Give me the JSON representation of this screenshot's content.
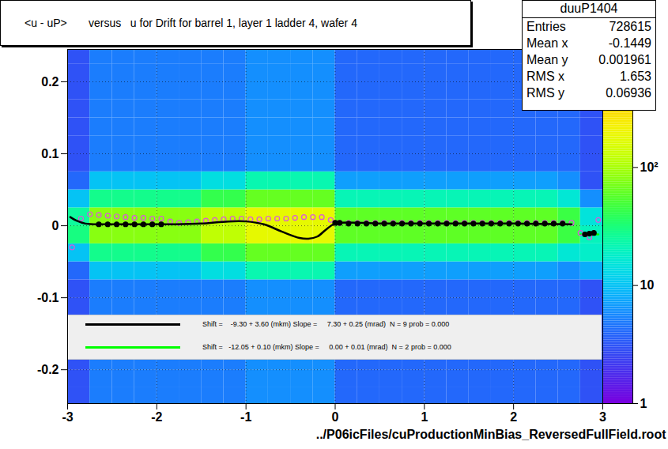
{
  "chart_data": {
    "type": "heatmap",
    "title": "<u - uP>       versus   u for Drift for barrel 1, layer 1 ladder 4, wafer 4",
    "xlabel": "../P06icFiles/cuProductionMinBias_ReversedFullField.root",
    "ylabel": null,
    "xlim": [
      -3,
      3
    ],
    "xticks": [
      -3,
      -2,
      -1,
      0,
      1,
      2,
      3
    ],
    "ylim": [
      -0.247,
      0.245
    ],
    "yticks": [
      -0.2,
      -0.1,
      0,
      0.1,
      0.2
    ],
    "grid": true,
    "heatmap": {
      "x_edges": [
        -3,
        -2.75,
        -2.5,
        -2.25,
        -2,
        -1.75,
        -1.5,
        -1.25,
        -1,
        -0.75,
        -0.5,
        -0.25,
        0,
        0.25,
        0.5,
        0.75,
        1,
        1.25,
        1.5,
        1.75,
        2,
        2.25,
        2.5,
        2.75,
        3
      ],
      "y_edges": [
        -0.25,
        -0.225,
        -0.2,
        -0.175,
        -0.15,
        -0.125,
        -0.1,
        -0.075,
        -0.05,
        -0.025,
        0,
        0.025,
        0.05,
        0.075,
        0.1,
        0.125,
        0.15,
        0.175,
        0.2,
        0.225,
        0.25
      ],
      "counts": [
        [
          3,
          5,
          5,
          5,
          5,
          5,
          5,
          5,
          6,
          6,
          6,
          6,
          4,
          4,
          4,
          4,
          4,
          4,
          4,
          4,
          4,
          4,
          4,
          3
        ],
        [
          3,
          5,
          5,
          5,
          5,
          5,
          5,
          5,
          6,
          6,
          6,
          6,
          4,
          4,
          4,
          4,
          4,
          4,
          4,
          4,
          4,
          4,
          4,
          3
        ],
        [
          3,
          5,
          5,
          5,
          5,
          5,
          5,
          5,
          6,
          6,
          6,
          6,
          4,
          4,
          4,
          4,
          4,
          4,
          4,
          4,
          4,
          4,
          4,
          3
        ],
        [
          3,
          5,
          5,
          5,
          5,
          5,
          5,
          5,
          6,
          6,
          6,
          6,
          4,
          4,
          4,
          4,
          4,
          4,
          4,
          4,
          4,
          4,
          4,
          3
        ],
        [
          3,
          5,
          5,
          5,
          5,
          5,
          5,
          5,
          6,
          6,
          6,
          6,
          4,
          4,
          4,
          4,
          4,
          4,
          4,
          4,
          4,
          4,
          4,
          3
        ],
        [
          3,
          5,
          5,
          5,
          5,
          5,
          5,
          5,
          6,
          6,
          6,
          6,
          4,
          4,
          4,
          4,
          4,
          4,
          4,
          4,
          4,
          4,
          4,
          3
        ],
        [
          3,
          5,
          5,
          5,
          5,
          5,
          5,
          5,
          6,
          6,
          6,
          6,
          4,
          4,
          4,
          4,
          4,
          4,
          4,
          4,
          4,
          4,
          4,
          3
        ],
        [
          4,
          10,
          10,
          10,
          10,
          10,
          14,
          14,
          22,
          22,
          22,
          22,
          7,
          7,
          7,
          7,
          7,
          7,
          7,
          7,
          7,
          7,
          6,
          8
        ],
        [
          10,
          28,
          28,
          28,
          28,
          28,
          42,
          42,
          63,
          63,
          63,
          63,
          21,
          21,
          21,
          21,
          21,
          21,
          21,
          21,
          21,
          21,
          16,
          18
        ],
        [
          30,
          80,
          80,
          80,
          80,
          80,
          120,
          120,
          180,
          180,
          180,
          180,
          60,
          60,
          60,
          60,
          60,
          60,
          60,
          60,
          60,
          60,
          45,
          20
        ],
        [
          25,
          80,
          80,
          80,
          80,
          80,
          120,
          120,
          180,
          180,
          180,
          180,
          60,
          60,
          60,
          60,
          60,
          60,
          60,
          60,
          60,
          60,
          45,
          15
        ],
        [
          10,
          28,
          28,
          28,
          28,
          28,
          42,
          42,
          63,
          63,
          63,
          63,
          21,
          21,
          21,
          21,
          21,
          21,
          21,
          21,
          21,
          21,
          16,
          6
        ],
        [
          4,
          10,
          10,
          10,
          10,
          10,
          14,
          14,
          22,
          22,
          22,
          22,
          7,
          7,
          7,
          7,
          7,
          7,
          7,
          7,
          7,
          7,
          6,
          3
        ],
        [
          3,
          5,
          5,
          5,
          5,
          5,
          5,
          5,
          6,
          6,
          6,
          6,
          4,
          4,
          4,
          4,
          4,
          4,
          4,
          4,
          4,
          4,
          4,
          3
        ],
        [
          3,
          5,
          5,
          5,
          5,
          5,
          5,
          5,
          6,
          6,
          6,
          6,
          4,
          4,
          4,
          4,
          4,
          4,
          4,
          4,
          4,
          4,
          4,
          3
        ],
        [
          3,
          5,
          5,
          5,
          5,
          5,
          5,
          5,
          6,
          6,
          6,
          6,
          4,
          4,
          4,
          4,
          4,
          4,
          4,
          4,
          4,
          4,
          4,
          3
        ],
        [
          3,
          5,
          5,
          5,
          5,
          5,
          5,
          5,
          6,
          6,
          6,
          6,
          4,
          4,
          4,
          4,
          4,
          4,
          4,
          4,
          4,
          4,
          4,
          3
        ],
        [
          3,
          5,
          5,
          5,
          5,
          5,
          5,
          5,
          6,
          6,
          6,
          6,
          4,
          4,
          4,
          4,
          4,
          4,
          4,
          4,
          4,
          4,
          4,
          3
        ],
        [
          3,
          5,
          5,
          5,
          5,
          5,
          5,
          5,
          6,
          6,
          6,
          6,
          4,
          4,
          4,
          4,
          4,
          4,
          4,
          4,
          4,
          4,
          4,
          3
        ],
        [
          3,
          5,
          5,
          5,
          5,
          5,
          5,
          5,
          6,
          6,
          6,
          6,
          4,
          4,
          4,
          4,
          4,
          4,
          4,
          4,
          4,
          4,
          4,
          3
        ]
      ]
    },
    "colorbar": {
      "log": true,
      "range": [
        1,
        1000
      ],
      "ticks": [
        1,
        10,
        {
          "value": 100,
          "label": "10²"
        }
      ]
    },
    "stats": {
      "title": "duuP1404",
      "rows": [
        {
          "label": "Entries",
          "value": 728615
        },
        {
          "label": "Mean x",
          "value": -0.1449
        },
        {
          "label": "Mean y",
          "value": 0.001961
        },
        {
          "label": "RMS x",
          "value": 1.653
        },
        {
          "label": "RMS y",
          "value": 0.06936
        }
      ]
    },
    "series": [
      {
        "name": "Shift =   -12.05 + 0.10 (mkm) Slope =     0.00 + 0.01 (mrad)  N = 2 prob = 0.000",
        "type": "line",
        "color": "#00ff00",
        "line_style": "solid",
        "x": [
          2.75,
          2.95
        ],
        "values": [
          -0.012,
          -0.012
        ]
      },
      {
        "type": "scatter",
        "color": "#dd55dd",
        "marker": "circle-open",
        "x": [
          -2.95,
          -2.85,
          -2.75,
          -2.65,
          -2.55,
          -2.45,
          -2.35,
          -2.25,
          -2.15,
          -2.05,
          -1.95,
          -1.85,
          -1.75,
          -1.65,
          -1.55,
          -1.45,
          -1.35,
          -1.25,
          -1.15,
          -1.05,
          -0.95,
          -0.85,
          -0.75,
          -0.65,
          -0.55,
          -0.45,
          -0.35,
          -0.25,
          -0.15,
          -0.05,
          0.05,
          0.15,
          0.25,
          0.35,
          0.45,
          0.55,
          0.65,
          0.75,
          0.85,
          0.95,
          1.05,
          1.15,
          1.25,
          1.35,
          1.45,
          1.55,
          1.65,
          1.75,
          1.85,
          1.95,
          2.05,
          2.15,
          2.25,
          2.35,
          2.45,
          2.55,
          2.65,
          2.75,
          2.85,
          2.95
        ],
        "values": [
          -0.03,
          0.01,
          0.016,
          0.015,
          0.014,
          0.013,
          0.012,
          0.011,
          0.011,
          0.01,
          0.01,
          0.006,
          0.004,
          0.005,
          0.006,
          0.007,
          0.008,
          0.009,
          0.01,
          0.01,
          0.009,
          0.009,
          0.01,
          0.01,
          0.01,
          0.011,
          0.012,
          0.012,
          0.012,
          0.008,
          0.004,
          0.004,
          0.004,
          0.004,
          0.004,
          0.004,
          0.004,
          0.004,
          0.004,
          0.004,
          0.004,
          0.004,
          0.004,
          0.004,
          0.004,
          0.004,
          0.004,
          0.004,
          0.004,
          0.004,
          0.004,
          0.004,
          0.004,
          0.004,
          0.004,
          0.004,
          0.004,
          -0.01,
          -0.016,
          0.008
        ]
      },
      {
        "type": "scatter",
        "color": "#000000",
        "marker": "circle",
        "x": [
          -2.65,
          -2.55,
          -2.45,
          -2.35,
          -2.25,
          -2.15,
          -2.05,
          -1.95,
          0,
          0.05,
          0.15,
          0.25,
          0.35,
          0.45,
          0.55,
          0.65,
          0.75,
          0.85,
          0.95,
          1.05,
          1.15,
          1.25,
          1.35,
          1.45,
          1.55,
          1.65,
          1.75,
          1.85,
          1.95,
          2.05,
          2.15,
          2.25,
          2.35,
          2.45,
          2.55,
          2.8,
          2.85,
          2.9
        ],
        "values": [
          0.002,
          0.002,
          0.002,
          0.002,
          0.002,
          0.002,
          0.002,
          0.002,
          0.004,
          0.004,
          0.003,
          0.003,
          0.003,
          0.003,
          0.003,
          0.003,
          0.003,
          0.003,
          0.003,
          0.003,
          0.003,
          0.003,
          0.003,
          0.003,
          0.003,
          0.003,
          0.003,
          0.003,
          0.003,
          0.003,
          0.003,
          0.003,
          0.003,
          0.003,
          0.003,
          -0.012,
          -0.011,
          -0.01
        ]
      },
      {
        "name": "Shift =    -9.30 + 3.60 (mkm) Slope =     7.30 + 0.25 (mrad)  N = 9 prob = 0.000",
        "type": "line",
        "color": "#000000",
        "line_style": "solid",
        "x": [
          -2.97,
          -2.9,
          -2.8,
          -2.6,
          -2.2,
          -1.8,
          -1.5,
          -1.2,
          -1.0,
          -0.8,
          -0.6,
          -0.4,
          -0.3,
          -0.2,
          -0.1,
          0.0,
          0.5,
          1.0,
          1.5,
          2.0,
          2.65
        ],
        "values": [
          0.012,
          0.007,
          0.003,
          0.002,
          0.002,
          0.002,
          0.003,
          0.006,
          0.006,
          0.002,
          -0.008,
          -0.017,
          -0.018,
          -0.015,
          -0.005,
          0.003,
          0.003,
          0.003,
          0.003,
          0.003,
          0.002
        ]
      }
    ]
  }
}
